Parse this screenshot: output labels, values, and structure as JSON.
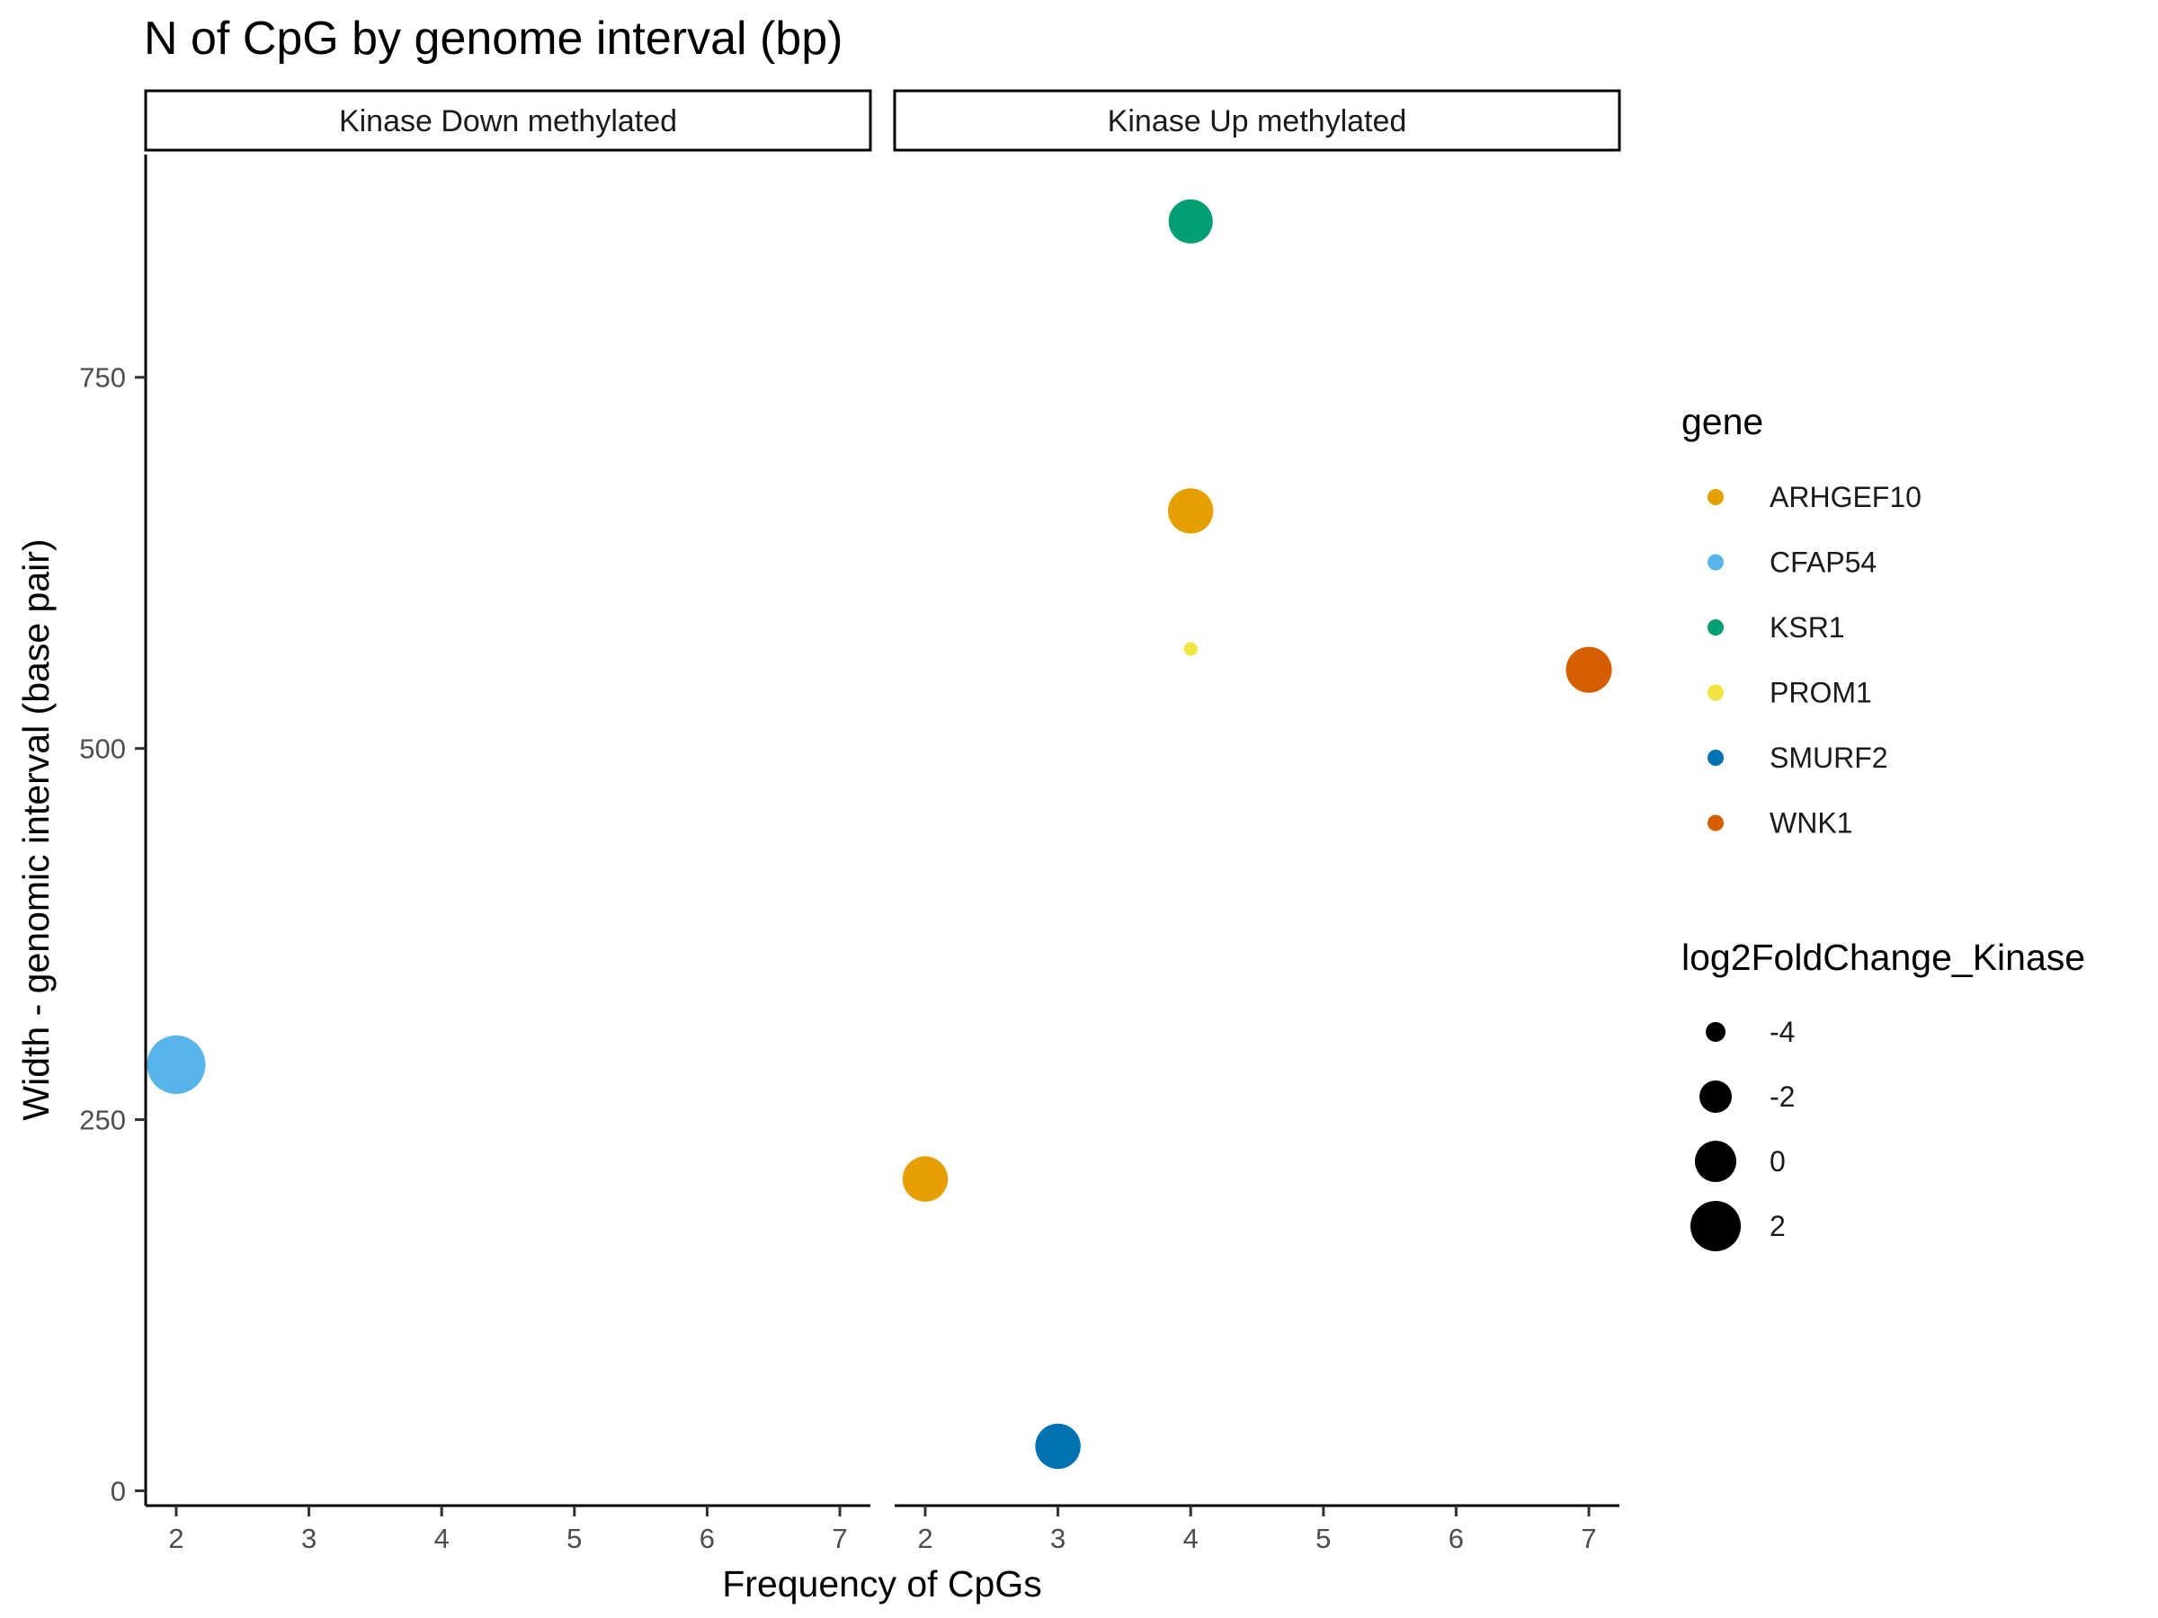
{
  "chart_data": {
    "type": "scatter",
    "title": "N of CpG by genome interval (bp)",
    "xlabel": "Frequency of CpGs",
    "ylabel": "Width - genomic interval (base pair)",
    "x_ticks": [
      2,
      3,
      4,
      5,
      6,
      7
    ],
    "y_ticks": [
      0,
      250,
      500,
      750
    ],
    "xlim": [
      1.77,
      7.23
    ],
    "ylim": [
      -10,
      900
    ],
    "grid": false,
    "facets": [
      "Kinase Down methylated",
      "Kinase Up methylated"
    ],
    "color_legend": {
      "title": "gene",
      "entries": [
        {
          "name": "ARHGEF10",
          "color": "#E69F00"
        },
        {
          "name": "CFAP54",
          "color": "#56B4E9"
        },
        {
          "name": "KSR1",
          "color": "#009E73"
        },
        {
          "name": "PROM1",
          "color": "#F0E442"
        },
        {
          "name": "SMURF2",
          "color": "#0072B2"
        },
        {
          "name": "WNK1",
          "color": "#D55E00"
        }
      ]
    },
    "size_legend": {
      "title": "log2FoldChange_Kinase",
      "entries": [
        {
          "label": "-4",
          "value": -4
        },
        {
          "label": "-2",
          "value": -2
        },
        {
          "label": "0",
          "value": 0
        },
        {
          "label": "2",
          "value": 2
        }
      ]
    },
    "points": [
      {
        "facet": 0,
        "gene": "CFAP54",
        "x": 2,
        "y": 287,
        "log2fc": 2.5
      },
      {
        "facet": 1,
        "gene": "KSR1",
        "x": 4,
        "y": 855,
        "log2fc": 0.3
      },
      {
        "facet": 1,
        "gene": "ARHGEF10",
        "x": 4,
        "y": 660,
        "log2fc": 0.5
      },
      {
        "facet": 1,
        "gene": "PROM1",
        "x": 4,
        "y": 567,
        "log2fc": -5.0
      },
      {
        "facet": 1,
        "gene": "WNK1",
        "x": 7,
        "y": 553,
        "log2fc": 0.6
      },
      {
        "facet": 1,
        "gene": "ARHGEF10",
        "x": 2,
        "y": 210,
        "log2fc": 0.5
      },
      {
        "facet": 1,
        "gene": "SMURF2",
        "x": 3,
        "y": 30,
        "log2fc": 0.5
      }
    ]
  }
}
